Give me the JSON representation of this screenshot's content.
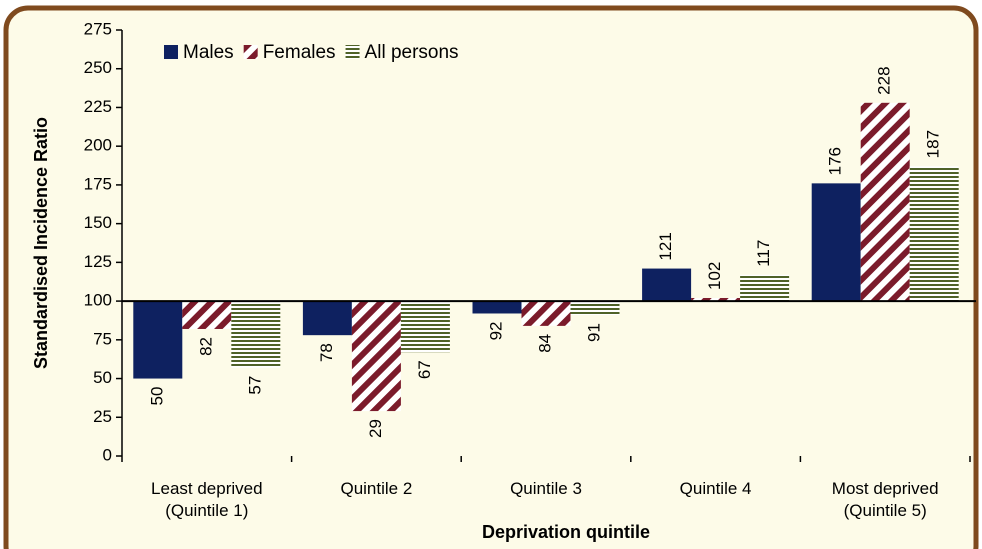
{
  "chart_data": {
    "type": "bar",
    "categories": [
      "Least deprived (Quintile 1)",
      "Quintile 2",
      "Quintile 3",
      "Quintile 4",
      "Most deprived (Quintile 5)"
    ],
    "series": [
      {
        "name": "Males",
        "color": "#0e2160",
        "pattern": "solid",
        "values": [
          50,
          78,
          92,
          121,
          176
        ]
      },
      {
        "name": "Females",
        "color": "#7b1b2b",
        "pattern": "diagonal",
        "values": [
          82,
          29,
          84,
          102,
          228
        ]
      },
      {
        "name": "All persons",
        "color": "#4f6228",
        "pattern": "horizontal",
        "values": [
          57,
          67,
          91,
          117,
          187
        ]
      }
    ],
    "baseline": 100,
    "ylim": [
      0,
      275
    ],
    "yticks": [
      0,
      25,
      50,
      75,
      100,
      125,
      150,
      175,
      200,
      225,
      250,
      275
    ],
    "ylabel": "Standardised Incidence Ratio",
    "xlabel": "Deprivation quintile",
    "legend": "top-left"
  }
}
